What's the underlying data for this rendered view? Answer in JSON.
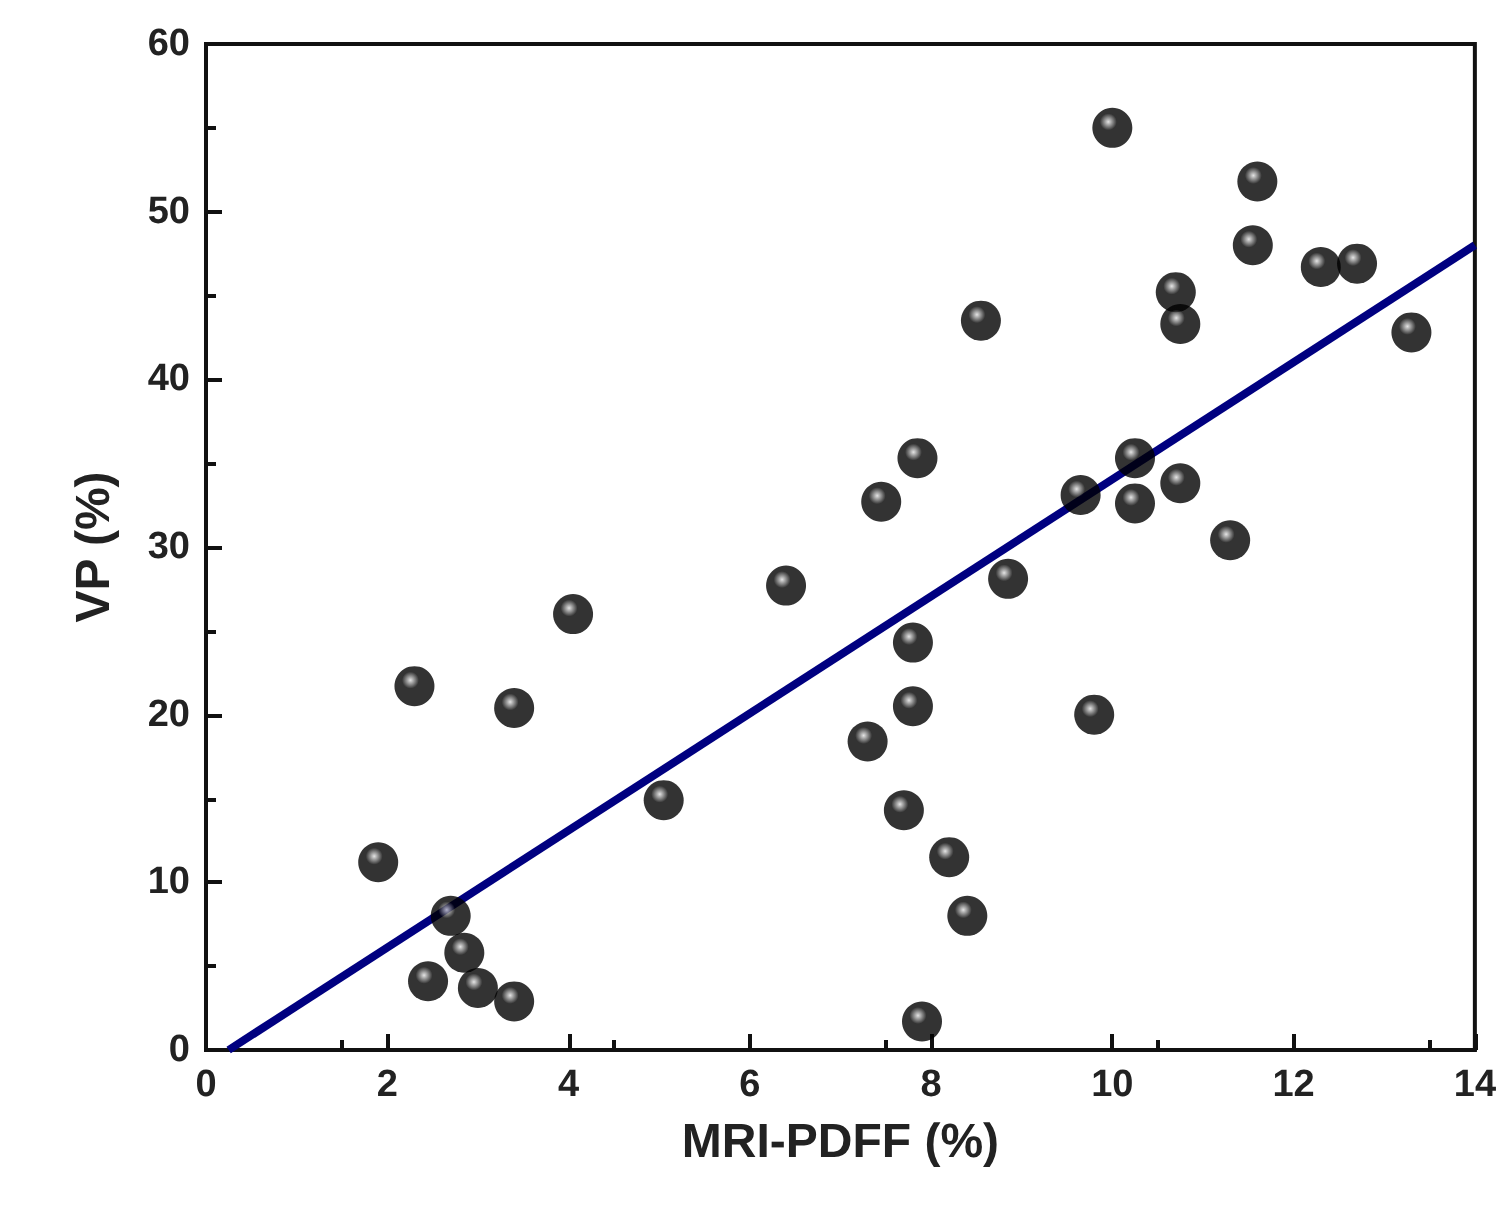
{
  "chart_data": {
    "type": "scatter",
    "xlabel": "MRI-PDFF (%)",
    "ylabel": "VP (%)",
    "xlim": [
      0,
      14
    ],
    "xticks": [
      0,
      2,
      4,
      6,
      8,
      10,
      12,
      14
    ],
    "ylim": [
      0,
      60
    ],
    "yticks": [
      0,
      10,
      20,
      30,
      40,
      50,
      60
    ],
    "grid": false,
    "marker": "circle",
    "series": [
      {
        "color": "#000000",
        "x": [
          1.9,
          2.3,
          2.45,
          2.7,
          2.85,
          3.0,
          3.4,
          3.4,
          4.05,
          5.05,
          6.4,
          7.3,
          7.45,
          7.7,
          7.8,
          7.8,
          7.85,
          7.9,
          8.2,
          8.4,
          8.55,
          8.85,
          9.65,
          9.8,
          10.0,
          10.25,
          10.25,
          10.7,
          10.75,
          10.75,
          11.3,
          11.55,
          11.6,
          12.3,
          12.7,
          13.3
        ],
        "values": [
          11.2,
          21.7,
          4.1,
          8.0,
          5.8,
          3.7,
          2.9,
          20.4,
          26.0,
          14.9,
          27.7,
          18.4,
          32.7,
          14.3,
          20.5,
          24.3,
          35.3,
          1.7,
          11.5,
          8.0,
          43.5,
          28.1,
          33.1,
          20.0,
          55.0,
          35.3,
          32.6,
          45.2,
          43.3,
          33.8,
          30.4,
          48.0,
          51.8,
          46.7,
          46.9,
          42.8
        ]
      },
      {
        "type": "line",
        "color": "#000080",
        "x": [
          0.25,
          14
        ],
        "values": [
          0,
          48
        ],
        "line_style": "solid",
        "marker": "none"
      }
    ]
  }
}
